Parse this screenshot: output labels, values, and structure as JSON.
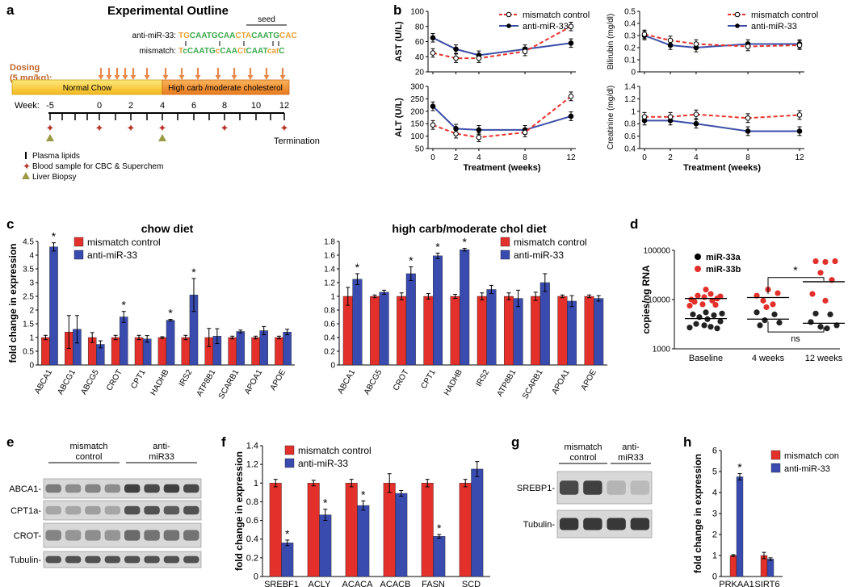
{
  "panel_labels": {
    "a": "a",
    "b": "b",
    "c": "c",
    "d": "d",
    "e": "e",
    "f": "f",
    "g": "g",
    "h": "h"
  },
  "panel_a": {
    "title": "Experimental Outline",
    "seed_label": "seed",
    "anti_label": "anti-miR-33:",
    "mismatch_label": "mismatch:",
    "anti_seq": [
      {
        "t": "TG",
        "c": "#e8a33a"
      },
      {
        "t": "CAATGCAA",
        "c": "#3aa84a"
      },
      {
        "t": "CTA",
        "c": "#e8a33a"
      },
      {
        "t": "CAATG",
        "c": "#3aa84a"
      },
      {
        "t": "CAC",
        "c": "#e8a33a"
      }
    ],
    "mismatch_seq": [
      {
        "t": "T",
        "c": "#e8a33a"
      },
      {
        "t": "c",
        "c": "#3aa84a"
      },
      {
        "t": "CAATG",
        "c": "#3aa84a"
      },
      {
        "t": "c",
        "c": "#e8a33a"
      },
      {
        "t": "CAA",
        "c": "#3aa84a"
      },
      {
        "t": "Ct",
        "c": "#e8a33a"
      },
      {
        "t": "CAAT",
        "c": "#3aa84a"
      },
      {
        "t": "cat",
        "c": "#e8a33a"
      },
      {
        "t": "C",
        "c": "#3aa84a"
      }
    ],
    "dosing_line1": "Dosing",
    "dosing_line2": "(5 mg/kg):",
    "bar_chow": "Normal Chow",
    "bar_hc": "High carb /moderate cholesterol",
    "week_label": "Week:",
    "weeks": [
      "-5",
      "0",
      "2",
      "4",
      "6",
      "8",
      "10",
      "12"
    ],
    "termination": "Termination",
    "legend": [
      "Plasma lipids",
      "Blood sample for CBC & Superchem",
      "Liver Biopsy"
    ],
    "colors": {
      "dose": "#e8884a",
      "chow": "#f7c62f",
      "hc": "#f0932b",
      "star": "#b8332a",
      "tri": "#9a9a45"
    }
  },
  "panel_b": {
    "legend": {
      "mismatch": "mismatch control",
      "anti": "anti-miR-33"
    },
    "xlabel": "Treatment (weeks)",
    "x": [
      "0",
      "2",
      "4",
      "8",
      "12"
    ],
    "charts": [
      {
        "id": "ast",
        "ylabel": "AST (U/L)",
        "yticks": [
          "100",
          "80",
          "60",
          "40",
          "20"
        ],
        "ymin": 20,
        "ymax": 100,
        "mismatch": [
          45,
          38,
          38,
          47,
          80
        ],
        "anti": [
          65,
          50,
          42,
          50,
          58
        ]
      },
      {
        "id": "alt",
        "ylabel": "ALT (U/L)",
        "yticks": [
          "300",
          "250",
          "200",
          "150",
          "100",
          "50"
        ],
        "ymin": 50,
        "ymax": 300,
        "mismatch": [
          145,
          110,
          95,
          115,
          260
        ],
        "anti": [
          220,
          130,
          125,
          125,
          180
        ]
      },
      {
        "id": "bili",
        "ylabel": "Bilirubin (mg/dl)",
        "yticks": [
          "0.5",
          "0.4",
          "0.3",
          "0.2",
          "0.1",
          "0"
        ],
        "ymin": 0,
        "ymax": 0.5,
        "mismatch": [
          0.31,
          0.26,
          0.23,
          0.21,
          0.22
        ],
        "anti": [
          0.3,
          0.22,
          0.2,
          0.23,
          0.23
        ]
      },
      {
        "id": "creat",
        "ylabel": "Creatinine (mg/dl)",
        "yticks": [
          "1.4",
          "1.2",
          "1",
          "0.8",
          "0.6",
          "0.4"
        ],
        "ymin": 0.4,
        "ymax": 1.4,
        "mismatch": [
          0.91,
          0.91,
          0.95,
          0.89,
          0.94
        ],
        "anti": [
          0.85,
          0.85,
          0.8,
          0.68,
          0.68
        ]
      }
    ]
  },
  "panel_c": {
    "ylabel": "fold change in expression",
    "legend": {
      "mismatch": "mismatch control",
      "anti": "anti-miR-33"
    },
    "chow": {
      "title": "chow diet",
      "yticks": [
        "4.5",
        "4",
        "3.5",
        "3",
        "2.5",
        "2",
        "1.5",
        "1",
        "0.5",
        "0"
      ],
      "categories": [
        "ABCA1",
        "ABCG1",
        "ABCG5",
        "CROT",
        "CPT1",
        "HADHB",
        "IRS2",
        "ATP8B1",
        "SCARB1",
        "APOA1",
        "APOE"
      ],
      "mismatch": [
        1.0,
        1.2,
        1.0,
        1.0,
        1.0,
        1.0,
        1.0,
        1.0,
        1.0,
        1.0,
        1.0
      ],
      "anti": [
        4.3,
        1.3,
        0.75,
        1.75,
        0.95,
        1.63,
        2.55,
        1.05,
        1.22,
        1.25,
        1.2
      ],
      "star": [
        "*",
        "",
        "",
        "*",
        "",
        "*",
        "*",
        "",
        "",
        "",
        ""
      ]
    },
    "hc": {
      "title": "high carb/moderate chol diet",
      "yticks": [
        "1.8",
        "1.6",
        "1.4",
        "1.2",
        "1",
        "0.8",
        "0.6",
        "0.4",
        "0.2",
        "0"
      ],
      "categories": [
        "ABCA1",
        "ABCG5",
        "CROT",
        "CPT1",
        "HADHB",
        "IRS2",
        "ATP8B1",
        "SCARB1",
        "APOA1",
        "APOE"
      ],
      "mismatch": [
        1.0,
        1.0,
        1.0,
        1.0,
        1.0,
        1.0,
        1.0,
        1.0,
        1.0,
        1.0
      ],
      "anti": [
        1.25,
        1.06,
        1.33,
        1.59,
        1.68,
        1.1,
        0.97,
        1.2,
        0.93,
        0.97
      ],
      "star": [
        "*",
        "",
        "*",
        "*",
        "*",
        "",
        "",
        "",
        "",
        ""
      ]
    }
  },
  "panel_d": {
    "ylabel": "copies/ng RNA",
    "yticks": [
      "100000",
      "10000",
      "1000"
    ],
    "groups": [
      "Baseline",
      "4 weeks",
      "12 weeks"
    ],
    "legend": {
      "a": "miR-33a",
      "b": "miR-33b"
    },
    "star": "*",
    "ns": "ns"
  },
  "panel_e": {
    "group1": [
      "mismatch",
      "control"
    ],
    "group2": [
      "anti-",
      "miR33"
    ],
    "rows": [
      "ABCA1-",
      "CPT1a-",
      "CROT-",
      "Tubulin-"
    ]
  },
  "panel_f": {
    "ylabel": "fold change in expression",
    "legend": {
      "mismatch": "mismatch control",
      "anti": "anti-miR-33"
    },
    "yticks": [
      "1.4",
      "1.2",
      "1",
      "0.8",
      "0.6",
      "0.4",
      "0.2",
      "0"
    ],
    "categories": [
      "SREBF1",
      "ACLY",
      "ACACA",
      "ACACB",
      "FASN",
      "SCD"
    ],
    "mismatch": [
      1.0,
      1.0,
      1.0,
      1.0,
      1.0,
      1.0
    ],
    "anti": [
      0.36,
      0.66,
      0.76,
      0.89,
      0.43,
      1.15
    ],
    "star": [
      "*",
      "*",
      "*",
      "",
      "*",
      ""
    ]
  },
  "panel_g": {
    "group1": [
      "mismatch",
      "control"
    ],
    "group2": [
      "anti-",
      "miR33"
    ],
    "rows": [
      "SREBP1-",
      "Tubulin-"
    ]
  },
  "panel_h": {
    "ylabel": "fold change in expression",
    "legend": {
      "mismatch": "mismatch con",
      "anti": "anti-miR-33"
    },
    "yticks": [
      "6",
      "5",
      "4",
      "3",
      "2",
      "1",
      "0"
    ],
    "categories": [
      "PRKAA1",
      "SIRT6"
    ],
    "mismatch": [
      1.0,
      1.0
    ],
    "anti": [
      4.75,
      0.83
    ],
    "star": [
      "*",
      ""
    ]
  },
  "colors": {
    "red": "#e3302b",
    "blue": "#3a4bb0",
    "line_red": "#e8342c",
    "line_blue": "#3b4ea8"
  }
}
